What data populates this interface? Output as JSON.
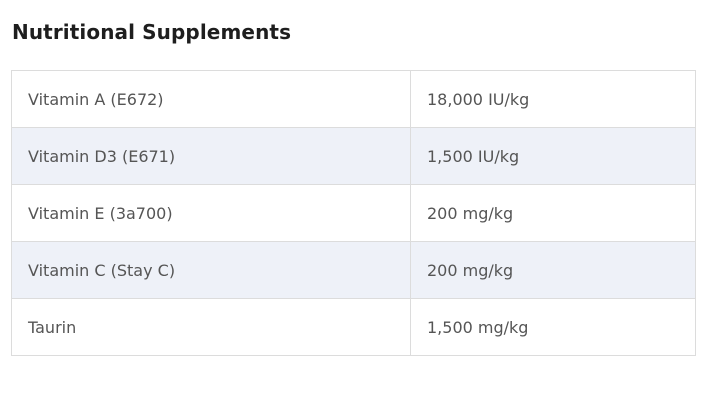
{
  "title": "Nutritional Supplements",
  "rows": [
    {
      "name": "Vitamin A (E672)",
      "value": "18,000 IU/kg"
    },
    {
      "name": "Vitamin D3 (E671)",
      "value": "1,500 IU/kg"
    },
    {
      "name": "Vitamin E (3a700)",
      "value": "200 mg/kg"
    },
    {
      "name": "Vitamin C (Stay C)",
      "value": "200 mg/kg"
    },
    {
      "name": "Taurin",
      "value": "1,500 mg/kg"
    }
  ],
  "colors": {
    "stripe": "#eef1f8",
    "border": "#dcdcdc",
    "text": "#555555"
  }
}
